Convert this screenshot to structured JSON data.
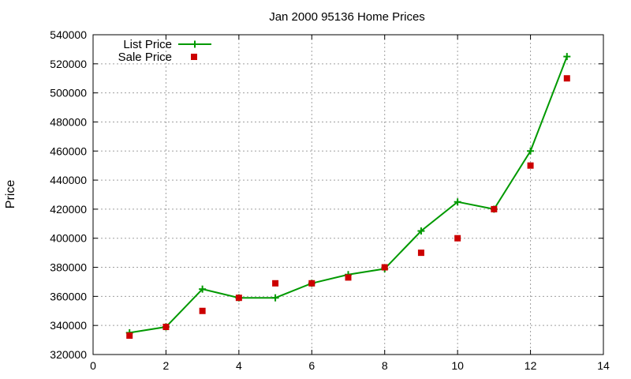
{
  "chart_data": {
    "type": "line",
    "title": "Jan 2000 95136 Home Prices",
    "xlabel": "",
    "ylabel": "Price",
    "xlim": [
      0,
      14
    ],
    "ylim": [
      320000,
      540000
    ],
    "x_ticks": [
      "0",
      "2",
      "4",
      "6",
      "8",
      "10",
      "12",
      "14"
    ],
    "y_ticks": [
      "320000",
      "340000",
      "360000",
      "380000",
      "400000",
      "420000",
      "440000",
      "460000",
      "480000",
      "500000",
      "520000",
      "540000"
    ],
    "grid": true,
    "legend_position": "top-left",
    "series": [
      {
        "name": "List Price",
        "style": "line-points",
        "marker": "plus",
        "color": "#009900",
        "x": [
          1,
          2,
          3,
          4,
          5,
          6,
          7,
          8,
          9,
          10,
          11,
          12,
          13
        ],
        "y": [
          335000,
          339000,
          365000,
          359000,
          359000,
          369000,
          375000,
          379000,
          405000,
          425000,
          420000,
          460000,
          525000
        ]
      },
      {
        "name": "Sale Price",
        "style": "points",
        "marker": "square",
        "color": "#cc0000",
        "x": [
          1,
          2,
          3,
          4,
          5,
          6,
          7,
          8,
          9,
          10,
          11,
          12,
          13
        ],
        "y": [
          333000,
          339000,
          350000,
          359000,
          369000,
          369000,
          373000,
          380000,
          390000,
          400000,
          420000,
          450000,
          510000
        ]
      }
    ]
  }
}
